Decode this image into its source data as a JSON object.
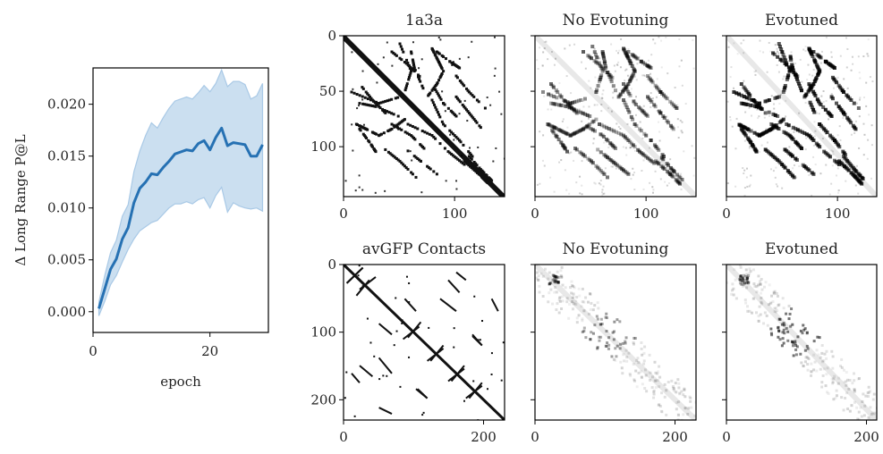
{
  "chart_data": [
    {
      "type": "line",
      "title": "",
      "xlabel": "epoch",
      "ylabel": "Δ Long Range P@L",
      "xlim": [
        0,
        30
      ],
      "ylim": [
        -0.002,
        0.0235
      ],
      "xticks": [
        0,
        20
      ],
      "xtick_labels": [
        "0",
        "20"
      ],
      "yticks": [
        0.0,
        0.005,
        0.01,
        0.015,
        0.02
      ],
      "ytick_labels": [
        "0.000",
        "0.005",
        "0.010",
        "0.015",
        "0.020"
      ],
      "grid": false,
      "x": [
        1,
        2,
        3,
        4,
        5,
        6,
        7,
        8,
        9,
        10,
        11,
        12,
        13,
        14,
        15,
        16,
        17,
        18,
        19,
        20,
        21,
        22,
        23,
        24,
        25,
        26,
        27,
        28,
        29
      ],
      "y": [
        0.0003,
        0.0022,
        0.0041,
        0.0051,
        0.007,
        0.0081,
        0.0105,
        0.0119,
        0.0125,
        0.0133,
        0.0132,
        0.0139,
        0.0145,
        0.0152,
        0.0154,
        0.0156,
        0.0155,
        0.0162,
        0.0165,
        0.0156,
        0.0168,
        0.0177,
        0.016,
        0.0163,
        0.0162,
        0.0161,
        0.015,
        0.015,
        0.0161
      ],
      "lower": [
        -0.0004,
        0.001,
        0.0026,
        0.0035,
        0.0048,
        0.006,
        0.007,
        0.0078,
        0.0082,
        0.0086,
        0.0088,
        0.0094,
        0.01,
        0.0104,
        0.0104,
        0.0106,
        0.0104,
        0.0108,
        0.011,
        0.01,
        0.0112,
        0.012,
        0.0096,
        0.0105,
        0.0102,
        0.01,
        0.0099,
        0.01,
        0.0097
      ],
      "upper": [
        0.0009,
        0.0035,
        0.0057,
        0.0069,
        0.0092,
        0.0103,
        0.0135,
        0.0155,
        0.017,
        0.0182,
        0.0177,
        0.0187,
        0.0196,
        0.0203,
        0.0205,
        0.0207,
        0.0205,
        0.0211,
        0.0218,
        0.0212,
        0.022,
        0.0233,
        0.0217,
        0.0222,
        0.0222,
        0.0219,
        0.0205,
        0.0208,
        0.022
      ],
      "colors": {
        "line": "#2671b3",
        "band": "#a9c9e6"
      }
    },
    {
      "type": "heatmap",
      "title": "1a3a",
      "extent": 145,
      "xticks": [
        0,
        100
      ],
      "xtick_labels": [
        "0",
        "100"
      ],
      "yticks": [
        0,
        50,
        100
      ],
      "ytick_labels": [
        "0",
        "50",
        "100"
      ],
      "cmap": "Greys"
    },
    {
      "type": "heatmap",
      "title": "No Evotuning",
      "extent": 145,
      "xticks": [
        0,
        100
      ],
      "xtick_labels": [
        "0",
        "100"
      ],
      "yticks": [
        0,
        50,
        100
      ],
      "ytick_labels": [
        "",
        "",
        ""
      ],
      "cmap": "Greys"
    },
    {
      "type": "heatmap",
      "title": "Evotuned",
      "extent": 145,
      "xticks": [
        0,
        100
      ],
      "xtick_labels": [
        "0",
        "100"
      ],
      "yticks": [
        0,
        50,
        100
      ],
      "ytick_labels": [
        "",
        "",
        ""
      ],
      "cmap": "Greys"
    },
    {
      "type": "heatmap",
      "title": "avGFP Contacts",
      "extent": 230,
      "xticks": [
        0,
        200
      ],
      "xtick_labels": [
        "0",
        "200"
      ],
      "yticks": [
        0,
        100,
        200
      ],
      "ytick_labels": [
        "0",
        "100",
        "200"
      ],
      "cmap": "Greys"
    },
    {
      "type": "heatmap",
      "title": "No Evotuning",
      "extent": 230,
      "xticks": [
        0,
        200
      ],
      "xtick_labels": [
        "0",
        "200"
      ],
      "yticks": [
        0,
        100,
        200
      ],
      "ytick_labels": [
        "",
        "",
        ""
      ],
      "cmap": "Greys"
    },
    {
      "type": "heatmap",
      "title": "Evotuned",
      "extent": 230,
      "xticks": [
        0,
        200
      ],
      "xtick_labels": [
        "0",
        "200"
      ],
      "yticks": [
        0,
        100,
        200
      ],
      "ytick_labels": [
        "",
        "",
        ""
      ],
      "cmap": "Greys"
    }
  ]
}
